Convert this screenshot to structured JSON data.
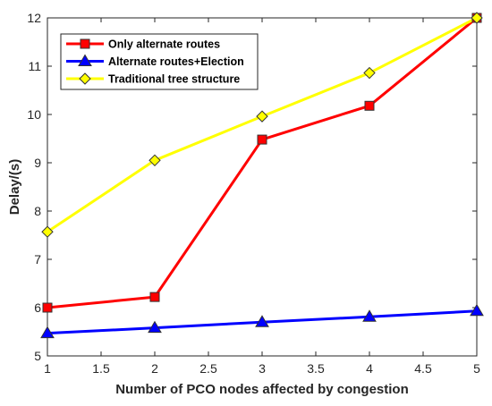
{
  "chart_data": {
    "type": "line",
    "xlabel": "Number of PCO nodes affected by congestion",
    "ylabel": "Delay/(s)",
    "xlim": [
      1,
      5
    ],
    "ylim": [
      5,
      12
    ],
    "x_ticks": [
      "1",
      "1.5",
      "2",
      "2.5",
      "3",
      "3.5",
      "4",
      "4.5",
      "5"
    ],
    "y_ticks": [
      "5",
      "6",
      "7",
      "8",
      "9",
      "10",
      "11",
      "12"
    ],
    "grid": false,
    "legend_position": "top-left",
    "x": [
      1,
      2,
      3,
      4,
      5
    ],
    "series": [
      {
        "name": "Only alternate routes",
        "values": [
          6.0,
          6.22,
          9.48,
          10.18,
          12.0
        ],
        "color": "#ff0000",
        "marker": "square"
      },
      {
        "name": "Alternate routes+Election",
        "values": [
          5.47,
          5.58,
          5.7,
          5.81,
          5.93
        ],
        "color": "#0000ff",
        "marker": "triangle"
      },
      {
        "name": "Traditional tree structure",
        "values": [
          7.57,
          9.05,
          9.96,
          10.86,
          12.0
        ],
        "color": "#ffff00",
        "marker": "diamond"
      }
    ]
  }
}
